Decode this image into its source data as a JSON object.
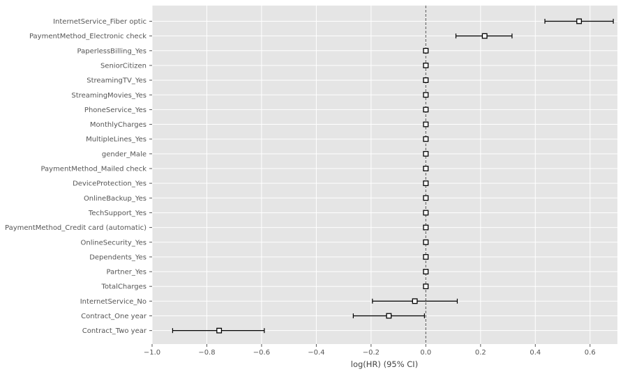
{
  "chart_data": {
    "type": "forest",
    "title": "",
    "xlabel": "log(HR) (95% CI)",
    "ylabel": "",
    "xlim": [
      -1.0,
      0.7
    ],
    "xticks": [
      -1.0,
      -0.8,
      -0.6,
      -0.4,
      -0.2,
      0.0,
      0.2,
      0.4,
      0.6
    ],
    "xtick_labels": [
      "−1.0",
      "−0.8",
      "−0.6",
      "−0.4",
      "−0.2",
      "0.0",
      "0.2",
      "0.4",
      "0.6"
    ],
    "reference_line": 0.0,
    "grid": true,
    "covariates": [
      {
        "label": "InternetService_Fiber optic",
        "coef": 0.56,
        "lower": 0.435,
        "upper": 0.685
      },
      {
        "label": "PaymentMethod_Electronic check",
        "coef": 0.215,
        "lower": 0.11,
        "upper": 0.315
      },
      {
        "label": "PaperlessBilling_Yes",
        "coef": 0.0,
        "lower": 0.0,
        "upper": 0.0
      },
      {
        "label": "SeniorCitizen",
        "coef": 0.0,
        "lower": 0.0,
        "upper": 0.0
      },
      {
        "label": "StreamingTV_Yes",
        "coef": 0.0,
        "lower": 0.0,
        "upper": 0.0
      },
      {
        "label": "StreamingMovies_Yes",
        "coef": 0.0,
        "lower": 0.0,
        "upper": 0.0
      },
      {
        "label": "PhoneService_Yes",
        "coef": 0.0,
        "lower": 0.0,
        "upper": 0.0
      },
      {
        "label": "MonthlyCharges",
        "coef": 0.0,
        "lower": 0.0,
        "upper": 0.0
      },
      {
        "label": "MultipleLines_Yes",
        "coef": 0.0,
        "lower": 0.0,
        "upper": 0.0
      },
      {
        "label": "gender_Male",
        "coef": 0.0,
        "lower": 0.0,
        "upper": 0.0
      },
      {
        "label": "PaymentMethod_Mailed check",
        "coef": 0.0,
        "lower": 0.0,
        "upper": 0.0
      },
      {
        "label": "DeviceProtection_Yes",
        "coef": 0.0,
        "lower": 0.0,
        "upper": 0.0
      },
      {
        "label": "OnlineBackup_Yes",
        "coef": 0.0,
        "lower": 0.0,
        "upper": 0.0
      },
      {
        "label": "TechSupport_Yes",
        "coef": 0.0,
        "lower": 0.0,
        "upper": 0.0
      },
      {
        "label": "PaymentMethod_Credit card (automatic)",
        "coef": 0.0,
        "lower": 0.0,
        "upper": 0.0
      },
      {
        "label": "OnlineSecurity_Yes",
        "coef": 0.0,
        "lower": 0.0,
        "upper": 0.0
      },
      {
        "label": "Dependents_Yes",
        "coef": 0.0,
        "lower": 0.0,
        "upper": 0.0
      },
      {
        "label": "Partner_Yes",
        "coef": 0.0,
        "lower": 0.0,
        "upper": 0.0
      },
      {
        "label": "TotalCharges",
        "coef": 0.0,
        "lower": 0.0,
        "upper": 0.0
      },
      {
        "label": "InternetService_No",
        "coef": -0.04,
        "lower": -0.195,
        "upper": 0.115
      },
      {
        "label": "Contract_One year",
        "coef": -0.135,
        "lower": -0.265,
        "upper": -0.005
      },
      {
        "label": "Contract_Two year",
        "coef": -0.755,
        "lower": -0.925,
        "upper": -0.59
      }
    ],
    "colors": {
      "plot_background": "#e5e5e5",
      "grid": "#ffffff",
      "marker_face": "#ffffff",
      "marker_edge": "#000000",
      "error_bar": "#000000",
      "reference_line": "#555555"
    }
  }
}
